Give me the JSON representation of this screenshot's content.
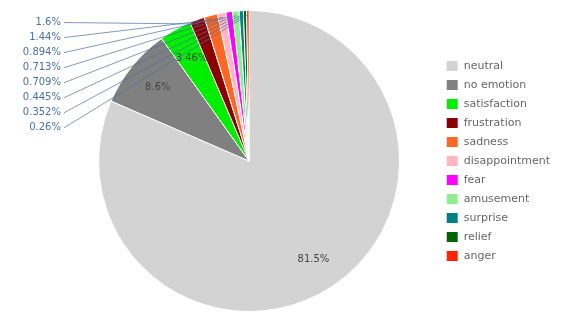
{
  "chart_data": {
    "type": "pie",
    "categories": [
      "neutral",
      "no emotion",
      "satisfaction",
      "frustration",
      "sadness",
      "disappointment",
      "fear",
      "amusement",
      "surprise",
      "relief",
      "anger"
    ],
    "values": [
      81.5,
      8.6,
      3.46,
      1.6,
      1.44,
      0.894,
      0.713,
      0.709,
      0.445,
      0.352,
      0.26
    ],
    "value_labels": [
      "81.5%",
      "8.6%",
      "3.46%",
      "1.6%",
      "1.44%",
      "0.894%",
      "0.713%",
      "0.709%",
      "0.445%",
      "0.352%",
      "0.26%"
    ],
    "colors": [
      "#d3d3d3",
      "#808080",
      "#00ee00",
      "#8b0000",
      "#ff6622",
      "#ffb6c1",
      "#ff00ff",
      "#90ee90",
      "#008080",
      "#006400",
      "#ff2200"
    ],
    "data_labels": true,
    "legend": "right"
  }
}
